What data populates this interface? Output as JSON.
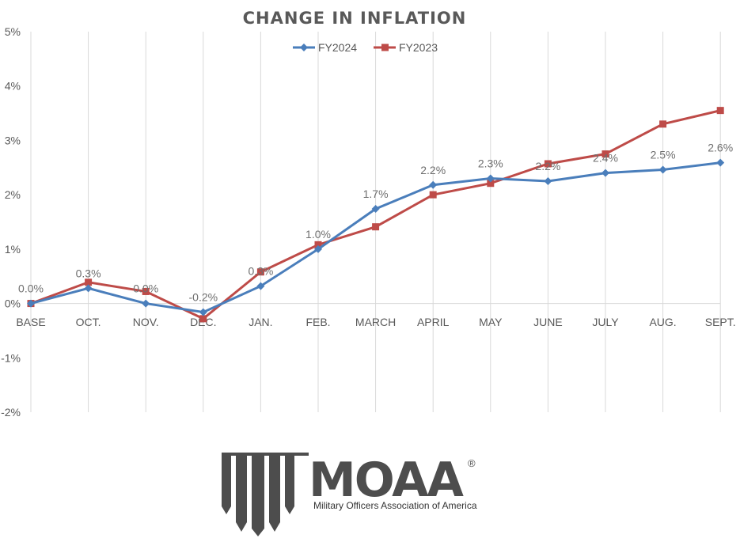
{
  "chart_data": {
    "type": "line",
    "title": "CHANGE IN INFLATION",
    "categories": [
      "BASE",
      "OCT.",
      "NOV.",
      "DEC.",
      "JAN.",
      "FEB.",
      "MARCH",
      "APRIL",
      "MAY",
      "JUNE",
      "JULY",
      "AUG.",
      "SEPT."
    ],
    "ylim": [
      -2,
      5
    ],
    "yticks": [
      -2,
      -1,
      0,
      1,
      2,
      3,
      4,
      5
    ],
    "ytick_labels": [
      "-2%",
      "-1%",
      "0%",
      "1%",
      "2%",
      "3%",
      "4%",
      "5%"
    ],
    "grid": "vertical",
    "legend": "top-center",
    "series": [
      {
        "name": "FY2024",
        "color": "#4a7ebb",
        "marker": "diamond",
        "values": [
          0.0,
          0.28,
          0.0,
          -0.16,
          0.32,
          1.0,
          1.74,
          2.18,
          2.3,
          2.25,
          2.4,
          2.46,
          2.59
        ],
        "labels": [
          "0.0%",
          "0.3%",
          "0.0%",
          "-0.2%",
          "0.3%",
          "1.0%",
          "1.7%",
          "2.2%",
          "2.3%",
          "2.2%",
          "2.4%",
          "2.5%",
          "2.6%"
        ]
      },
      {
        "name": "FY2023",
        "color": "#be4b48",
        "marker": "square",
        "values": [
          0.0,
          0.39,
          0.22,
          -0.28,
          0.58,
          1.08,
          1.41,
          2.0,
          2.21,
          2.57,
          2.75,
          3.3,
          3.55
        ]
      }
    ]
  },
  "logo": {
    "text": "MOAA",
    "registered": "®",
    "tagline": "Military Officers Association of America"
  }
}
